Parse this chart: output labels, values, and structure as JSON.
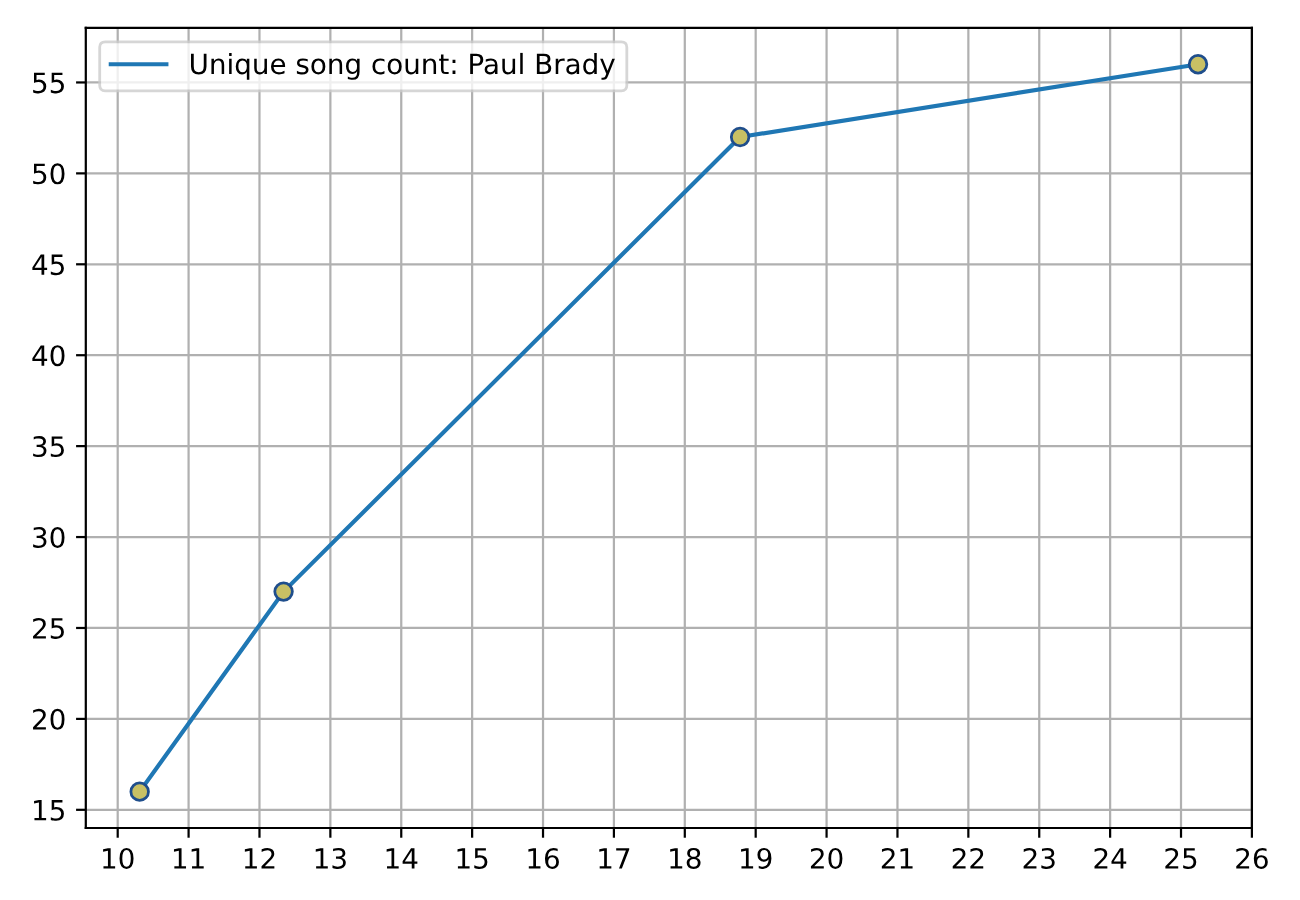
{
  "chart_data": {
    "type": "line",
    "x": [
      10.31,
      12.34,
      18.78,
      25.24
    ],
    "series": [
      {
        "name": "Unique song count: Paul Brady",
        "color": "#1f77b4",
        "values": [
          16,
          27,
          52,
          56
        ]
      },
      {
        "type": "scatter",
        "color": "#c8c064",
        "values": [
          16,
          27,
          52,
          56
        ]
      }
    ],
    "xlim": [
      9.55,
      26
    ],
    "xticks": [
      10,
      11,
      12,
      13,
      14,
      15,
      16,
      17,
      18,
      19,
      20,
      21,
      22,
      23,
      24,
      25,
      26
    ],
    "ylim": [
      14,
      58
    ],
    "yticks": [
      15,
      20,
      25,
      30,
      35,
      40,
      45,
      50,
      55
    ],
    "grid": true,
    "legend": "top left"
  }
}
